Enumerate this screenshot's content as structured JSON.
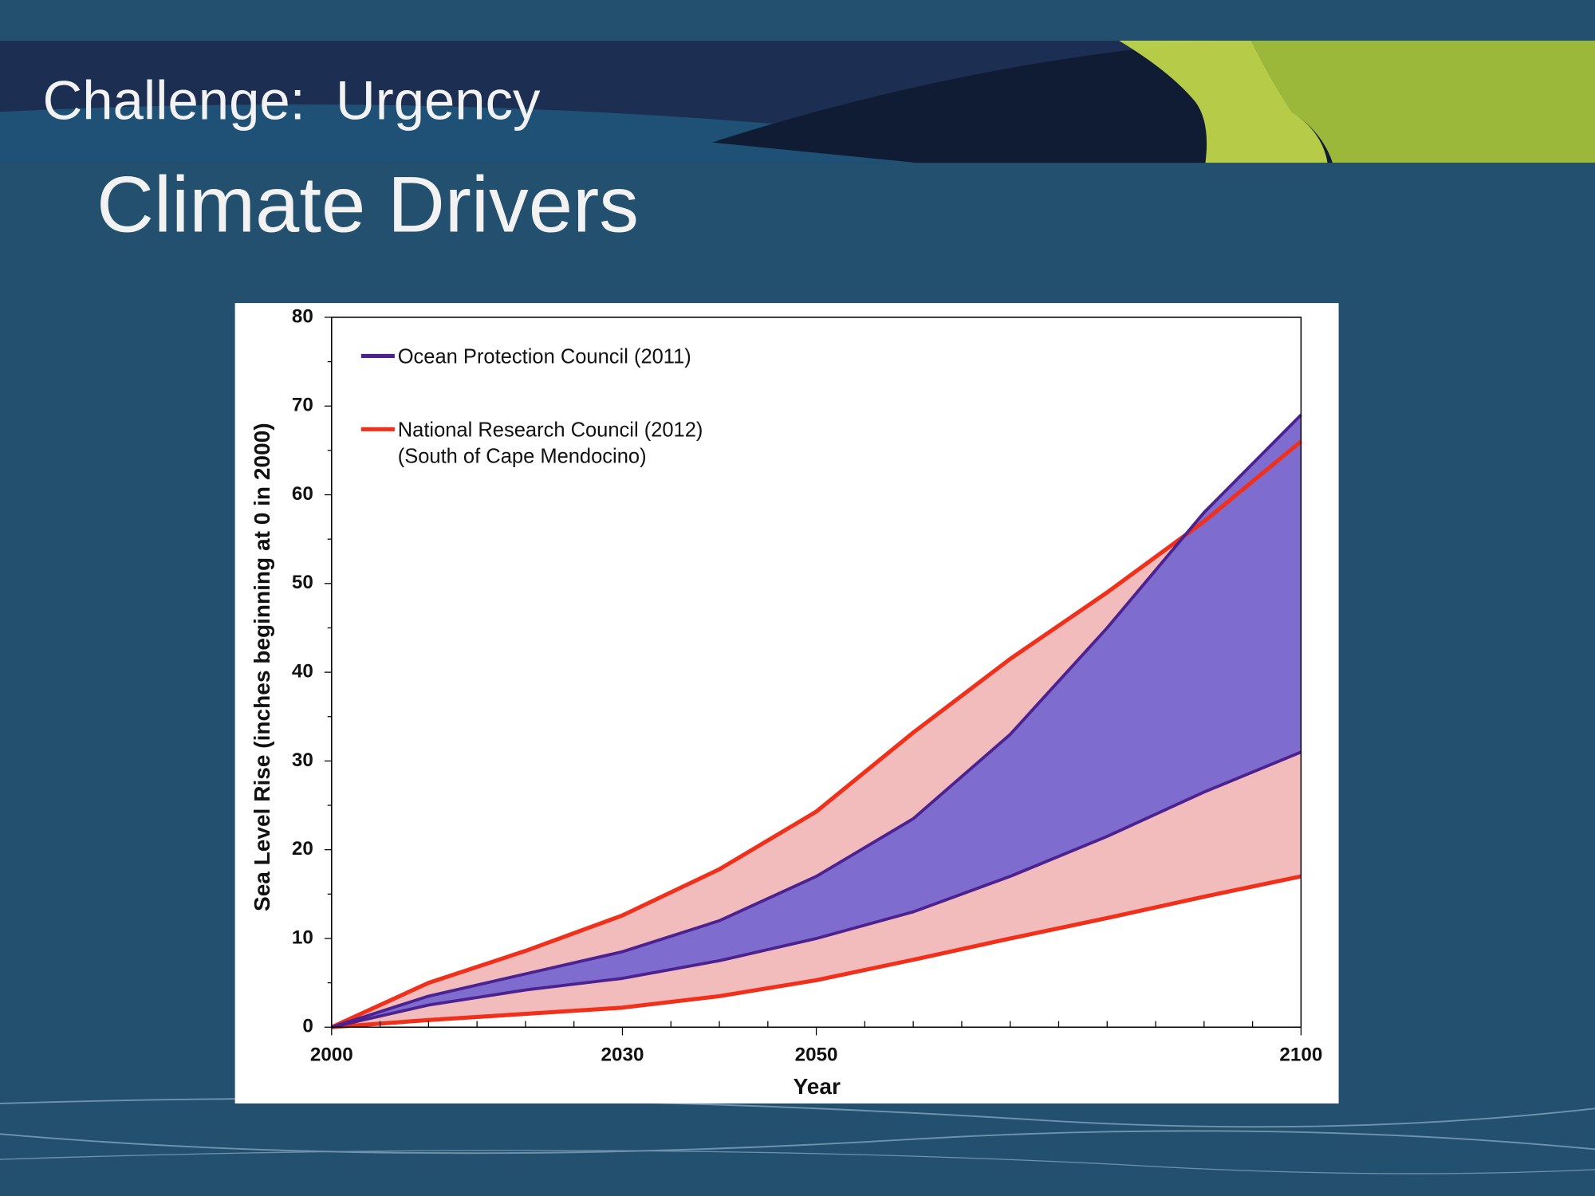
{
  "header": {
    "section": "Challenge:  Urgency",
    "title": "Climate Drivers"
  },
  "chart_data": {
    "type": "band",
    "ylabel": "Sea Level Rise (inches beginning at 0 in 2000)",
    "xlabel": "Year",
    "x": [
      2000,
      2010,
      2020,
      2030,
      2040,
      2050,
      2060,
      2070,
      2080,
      2090,
      2100
    ],
    "series": [
      {
        "name": "National Research Council (2012)",
        "legend_note": "(South of Cape Mendocino)",
        "color": "#f0301a",
        "fill": "#f2bcbc",
        "lower": [
          0,
          0.8,
          1.5,
          2.2,
          3.5,
          5.3,
          7.6,
          10,
          12.3,
          14.7,
          17
        ],
        "upper": [
          0,
          5,
          8.6,
          12.6,
          17.8,
          24.3,
          33.2,
          41.5,
          49,
          57,
          66
        ]
      },
      {
        "name": "Ocean Protection Council (2011)",
        "color": "#4b2290",
        "fill": "#7f6ccf",
        "lower": [
          0,
          2.5,
          4.2,
          5.5,
          7.5,
          10,
          13,
          17,
          21.5,
          26.5,
          31
        ],
        "upper": [
          0,
          3.5,
          6,
          8.5,
          12,
          17,
          23.5,
          33,
          45,
          58,
          69
        ]
      }
    ],
    "legend_order": [
      1,
      0
    ],
    "xlim": [
      2000,
      2100
    ],
    "ylim": [
      0,
      80
    ],
    "xticks": [
      2000,
      2030,
      2050,
      2100
    ],
    "xticks_minor": [
      2005,
      2010,
      2015,
      2020,
      2025,
      2035,
      2040,
      2045,
      2055,
      2060,
      2065,
      2070,
      2075,
      2080,
      2085,
      2090,
      2095
    ],
    "yticks": [
      0,
      10,
      20,
      30,
      40,
      50,
      60,
      70,
      80
    ],
    "yticks_minor": [
      5,
      15,
      25,
      35,
      45,
      55,
      65,
      75
    ]
  }
}
